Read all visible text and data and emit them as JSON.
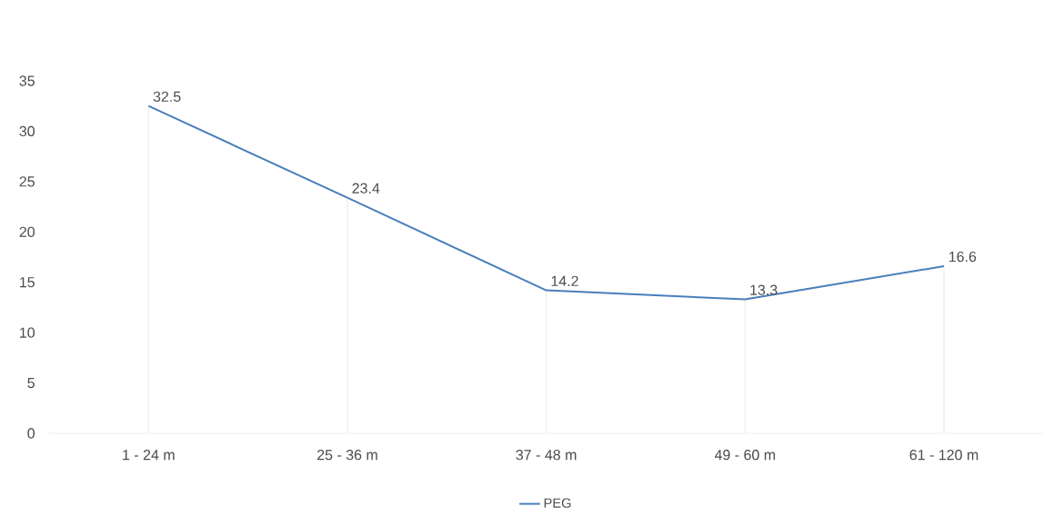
{
  "chart_data": {
    "type": "line",
    "categories": [
      "1 - 24 m",
      "25 - 36 m",
      "37 - 48 m",
      "49 - 60 m",
      "61 - 120 m"
    ],
    "series": [
      {
        "name": "PEG",
        "color": "#4a7ebb",
        "values": [
          32.5,
          23.4,
          14.2,
          13.3,
          16.6
        ]
      }
    ],
    "ylim": [
      0,
      35
    ],
    "yticks": [
      0,
      5,
      10,
      15,
      20,
      25,
      30,
      35
    ],
    "data_labels": true,
    "legend": "bottom",
    "marker": "none",
    "line_style": "solid"
  }
}
